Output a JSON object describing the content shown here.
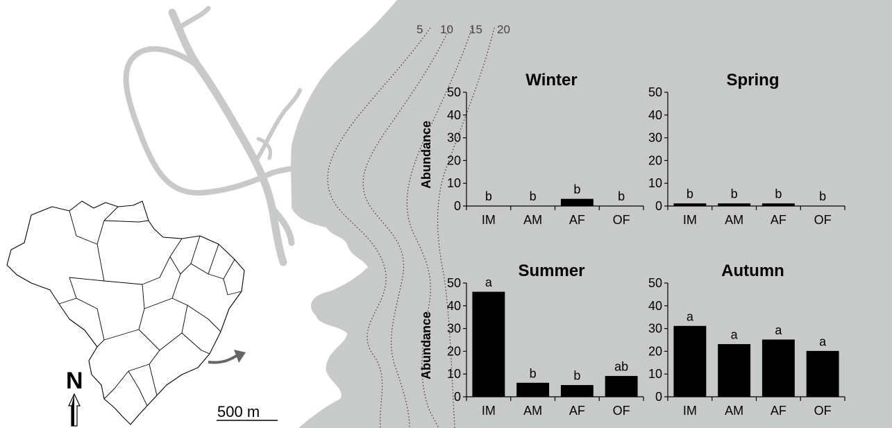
{
  "map": {
    "depth_labels": [
      "5",
      "10",
      "15",
      "20"
    ],
    "north_label": "N",
    "scale_label": "500 m",
    "land_color": "#ffffff",
    "water_color": "#c8c9c9"
  },
  "chart_data": [
    {
      "type": "bar",
      "title": "Winter",
      "categories": [
        "IM",
        "AM",
        "AF",
        "OF"
      ],
      "values": [
        0,
        0,
        3,
        0
      ],
      "labels": [
        "b",
        "b",
        "b",
        "b"
      ],
      "ylabel": "Abundance",
      "ylim": [
        0,
        50
      ],
      "yticks": [
        0,
        10,
        20,
        30,
        40,
        50
      ],
      "bar_color": "#000000"
    },
    {
      "type": "bar",
      "title": "Spring",
      "categories": [
        "IM",
        "AM",
        "AF",
        "OF"
      ],
      "values": [
        1,
        1,
        1,
        0
      ],
      "labels": [
        "b",
        "b",
        "b",
        "b"
      ],
      "ylabel": "",
      "ylim": [
        0,
        50
      ],
      "yticks": [
        0,
        10,
        20,
        30,
        40,
        50
      ],
      "bar_color": "#000000"
    },
    {
      "type": "bar",
      "title": "Summer",
      "categories": [
        "IM",
        "AM",
        "AF",
        "OF"
      ],
      "values": [
        46,
        6,
        5,
        9
      ],
      "labels": [
        "a",
        "b",
        "b",
        "ab"
      ],
      "ylabel": "Abundance",
      "ylim": [
        0,
        50
      ],
      "yticks": [
        0,
        10,
        20,
        30,
        40,
        50
      ],
      "bar_color": "#000000"
    },
    {
      "type": "bar",
      "title": "Autumn",
      "categories": [
        "IM",
        "AM",
        "AF",
        "OF"
      ],
      "values": [
        31,
        23,
        25,
        20
      ],
      "labels": [
        "a",
        "a",
        "a",
        "a"
      ],
      "ylabel": "",
      "ylim": [
        0,
        50
      ],
      "yticks": [
        0,
        10,
        20,
        30,
        40,
        50
      ],
      "bar_color": "#000000"
    }
  ]
}
